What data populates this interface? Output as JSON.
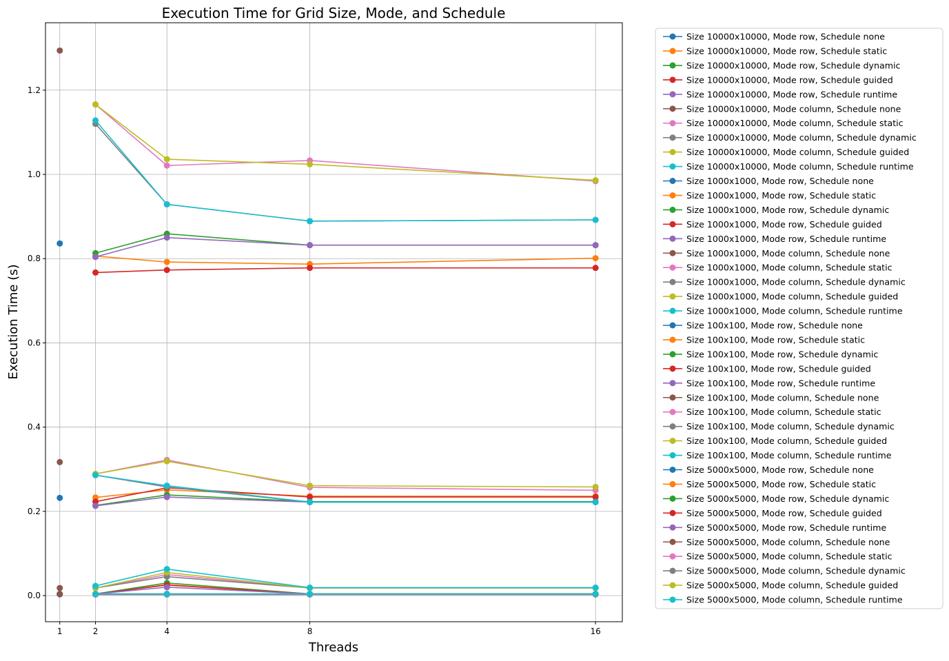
{
  "chart_data": {
    "type": "line",
    "title": "Execution Time for Grid Size, Mode, and Schedule",
    "xlabel": "Threads",
    "ylabel": "Execution Time (s)",
    "x": [
      1,
      2,
      4,
      8,
      16
    ],
    "xticks": [
      1,
      2,
      4,
      8,
      16
    ],
    "yticks": [
      0.0,
      0.2,
      0.4,
      0.6,
      0.8,
      1.0,
      1.2
    ],
    "ytick_labels": [
      "0.0",
      "0.2",
      "0.4",
      "0.6",
      "0.8",
      "1.0",
      "1.2"
    ],
    "xlim": [
      0.6,
      16.75
    ],
    "ylim": [
      -0.062,
      1.36
    ],
    "grid": true,
    "legend_position": "outside-right",
    "series": [
      {
        "name": "Size 10000x10000, Mode row, Schedule none",
        "color": "#1f77b4",
        "x": [
          1
        ],
        "values": [
          0.836
        ]
      },
      {
        "name": "Size 10000x10000, Mode row, Schedule static",
        "color": "#ff7f0e",
        "x": [
          2,
          4,
          8,
          16
        ],
        "values": [
          0.806,
          0.792,
          0.787,
          0.801
        ]
      },
      {
        "name": "Size 10000x10000, Mode row, Schedule dynamic",
        "color": "#2ca02c",
        "x": [
          2,
          4,
          8,
          16
        ],
        "values": [
          0.813,
          0.859,
          0.832,
          0.832
        ]
      },
      {
        "name": "Size 10000x10000, Mode row, Schedule guided",
        "color": "#d62728",
        "x": [
          2,
          4,
          8,
          16
        ],
        "values": [
          0.767,
          0.773,
          0.778,
          0.778
        ]
      },
      {
        "name": "Size 10000x10000, Mode row, Schedule runtime",
        "color": "#9467bd",
        "x": [
          2,
          4,
          8,
          16
        ],
        "values": [
          0.804,
          0.85,
          0.832,
          0.832
        ]
      },
      {
        "name": "Size 10000x10000, Mode column, Schedule none",
        "color": "#8c564b",
        "x": [
          1
        ],
        "values": [
          1.294
        ]
      },
      {
        "name": "Size 10000x10000, Mode column, Schedule static",
        "color": "#e377c2",
        "x": [
          2,
          4,
          8,
          16
        ],
        "values": [
          1.166,
          1.021,
          1.033,
          0.984
        ]
      },
      {
        "name": "Size 10000x10000, Mode column, Schedule dynamic",
        "color": "#7f7f7f",
        "x": [
          2,
          4,
          8,
          16
        ],
        "values": [
          1.12,
          0.929,
          0.889,
          0.892
        ]
      },
      {
        "name": "Size 10000x10000, Mode column, Schedule guided",
        "color": "#bcbd22",
        "x": [
          2,
          4,
          8,
          16
        ],
        "values": [
          1.166,
          1.036,
          1.024,
          0.986
        ]
      },
      {
        "name": "Size 10000x10000, Mode column, Schedule runtime",
        "color": "#17becf",
        "x": [
          2,
          4,
          8,
          16
        ],
        "values": [
          1.128,
          0.929,
          0.889,
          0.892
        ]
      },
      {
        "name": "Size 1000x1000, Mode row, Schedule none",
        "color": "#1f77b4",
        "x": [
          1
        ],
        "values": [
          0.004
        ]
      },
      {
        "name": "Size 1000x1000, Mode row, Schedule static",
        "color": "#ff7f0e",
        "x": [
          2,
          4,
          8,
          16
        ],
        "values": [
          0.004,
          0.026,
          0.004,
          0.004
        ]
      },
      {
        "name": "Size 1000x1000, Mode row, Schedule dynamic",
        "color": "#2ca02c",
        "x": [
          2,
          4,
          8,
          16
        ],
        "values": [
          0.004,
          0.03,
          0.004,
          0.004
        ]
      },
      {
        "name": "Size 1000x1000, Mode row, Schedule guided",
        "color": "#d62728",
        "x": [
          2,
          4,
          8,
          16
        ],
        "values": [
          0.004,
          0.025,
          0.004,
          0.004
        ]
      },
      {
        "name": "Size 1000x1000, Mode row, Schedule runtime",
        "color": "#9467bd",
        "x": [
          2,
          4,
          8,
          16
        ],
        "values": [
          0.004,
          0.02,
          0.004,
          0.004
        ]
      },
      {
        "name": "Size 1000x1000, Mode column, Schedule none",
        "color": "#8c564b",
        "x": [
          1
        ],
        "values": [
          0.018
        ]
      },
      {
        "name": "Size 1000x1000, Mode column, Schedule static",
        "color": "#e377c2",
        "x": [
          2,
          4,
          8,
          16
        ],
        "values": [
          0.018,
          0.05,
          0.018,
          0.018
        ]
      },
      {
        "name": "Size 1000x1000, Mode column, Schedule dynamic",
        "color": "#7f7f7f",
        "x": [
          2,
          4,
          8,
          16
        ],
        "values": [
          0.018,
          0.045,
          0.018,
          0.018
        ]
      },
      {
        "name": "Size 1000x1000, Mode column, Schedule guided",
        "color": "#bcbd22",
        "x": [
          2,
          4,
          8,
          16
        ],
        "values": [
          0.018,
          0.055,
          0.018,
          0.018
        ]
      },
      {
        "name": "Size 1000x1000, Mode column, Schedule runtime",
        "color": "#17becf",
        "x": [
          2,
          4,
          8,
          16
        ],
        "values": [
          0.023,
          0.063,
          0.019,
          0.019
        ]
      },
      {
        "name": "Size 100x100, Mode row, Schedule none",
        "color": "#1f77b4",
        "x": [
          1
        ],
        "values": [
          0.003
        ]
      },
      {
        "name": "Size 100x100, Mode row, Schedule static",
        "color": "#ff7f0e",
        "x": [
          2,
          4,
          8,
          16
        ],
        "values": [
          0.003,
          0.003,
          0.003,
          0.003
        ]
      },
      {
        "name": "Size 100x100, Mode row, Schedule dynamic",
        "color": "#2ca02c",
        "x": [
          2,
          4,
          8,
          16
        ],
        "values": [
          0.003,
          0.003,
          0.003,
          0.003
        ]
      },
      {
        "name": "Size 100x100, Mode row, Schedule guided",
        "color": "#d62728",
        "x": [
          2,
          4,
          8,
          16
        ],
        "values": [
          0.003,
          0.003,
          0.003,
          0.003
        ]
      },
      {
        "name": "Size 100x100, Mode row, Schedule runtime",
        "color": "#9467bd",
        "x": [
          2,
          4,
          8,
          16
        ],
        "values": [
          0.003,
          0.003,
          0.003,
          0.003
        ]
      },
      {
        "name": "Size 100x100, Mode column, Schedule none",
        "color": "#8c564b",
        "x": [
          1
        ],
        "values": [
          0.004
        ]
      },
      {
        "name": "Size 100x100, Mode column, Schedule static",
        "color": "#e377c2",
        "x": [
          2,
          4,
          8,
          16
        ],
        "values": [
          0.004,
          0.004,
          0.004,
          0.004
        ]
      },
      {
        "name": "Size 100x100, Mode column, Schedule dynamic",
        "color": "#7f7f7f",
        "x": [
          2,
          4,
          8,
          16
        ],
        "values": [
          0.004,
          0.004,
          0.004,
          0.004
        ]
      },
      {
        "name": "Size 100x100, Mode column, Schedule guided",
        "color": "#bcbd22",
        "x": [
          2,
          4,
          8,
          16
        ],
        "values": [
          0.004,
          0.004,
          0.004,
          0.004
        ]
      },
      {
        "name": "Size 100x100, Mode column, Schedule runtime",
        "color": "#17becf",
        "x": [
          2,
          4,
          8,
          16
        ],
        "values": [
          0.004,
          0.004,
          0.004,
          0.004
        ]
      },
      {
        "name": "Size 5000x5000, Mode row, Schedule none",
        "color": "#1f77b4",
        "x": [
          1
        ],
        "values": [
          0.232
        ]
      },
      {
        "name": "Size 5000x5000, Mode row, Schedule static",
        "color": "#ff7f0e",
        "x": [
          2,
          4,
          8,
          16
        ],
        "values": [
          0.233,
          0.251,
          0.236,
          0.236
        ]
      },
      {
        "name": "Size 5000x5000, Mode row, Schedule dynamic",
        "color": "#2ca02c",
        "x": [
          2,
          4,
          8,
          16
        ],
        "values": [
          0.214,
          0.239,
          0.223,
          0.223
        ]
      },
      {
        "name": "Size 5000x5000, Mode row, Schedule guided",
        "color": "#d62728",
        "x": [
          2,
          4,
          8,
          16
        ],
        "values": [
          0.223,
          0.256,
          0.234,
          0.234
        ]
      },
      {
        "name": "Size 5000x5000, Mode row, Schedule runtime",
        "color": "#9467bd",
        "x": [
          2,
          4,
          8,
          16
        ],
        "values": [
          0.213,
          0.234,
          0.222,
          0.222
        ]
      },
      {
        "name": "Size 5000x5000, Mode column, Schedule none",
        "color": "#8c564b",
        "x": [
          1
        ],
        "values": [
          0.317
        ]
      },
      {
        "name": "Size 5000x5000, Mode column, Schedule static",
        "color": "#e377c2",
        "x": [
          2,
          4,
          8,
          16
        ],
        "values": [
          0.289,
          0.322,
          0.257,
          0.25
        ]
      },
      {
        "name": "Size 5000x5000, Mode column, Schedule dynamic",
        "color": "#7f7f7f",
        "x": [
          2,
          4,
          8,
          16
        ],
        "values": [
          0.286,
          0.258,
          0.222,
          0.222
        ]
      },
      {
        "name": "Size 5000x5000, Mode column, Schedule guided",
        "color": "#bcbd22",
        "x": [
          2,
          4,
          8,
          16
        ],
        "values": [
          0.289,
          0.319,
          0.261,
          0.258
        ]
      },
      {
        "name": "Size 5000x5000, Mode column, Schedule runtime",
        "color": "#17becf",
        "x": [
          2,
          4,
          8,
          16
        ],
        "values": [
          0.286,
          0.261,
          0.222,
          0.222
        ]
      }
    ]
  }
}
